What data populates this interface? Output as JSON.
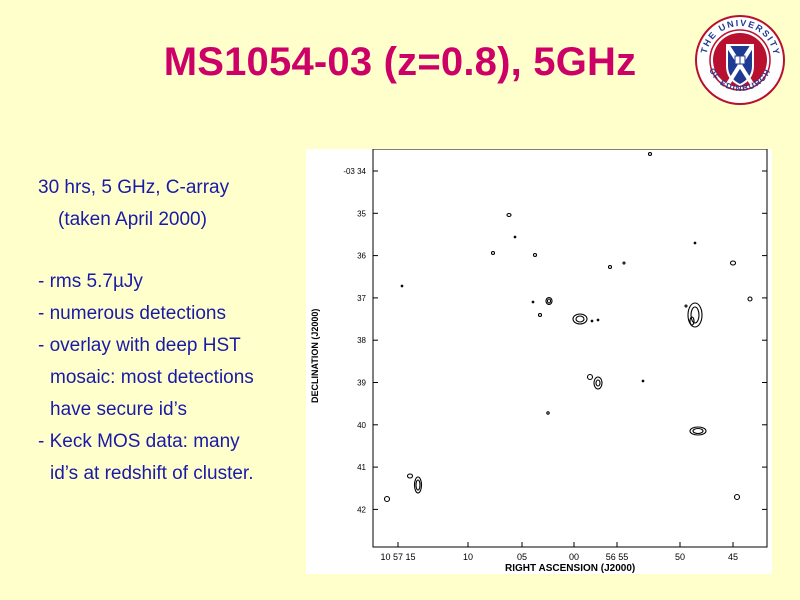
{
  "slide": {
    "title": "MS1054-03 (z=0.8), 5GHz"
  },
  "logo": {
    "icon": "university-of-edinburgh-seal-icon",
    "lettering": "THE UNIVERSITY OF EDINBURGH"
  },
  "bullets": {
    "line1": "30 hrs, 5 GHz, C-array",
    "line2": "(taken April 2000)",
    "line3": "- rms 5.7µJy",
    "line4": "- numerous detections",
    "line5": "- overlay with deep HST",
    "line6": "mosaic: most detections",
    "line7": "have secure id’s",
    "line8": "- Keck MOS data: many",
    "line9": "id’s at redshift of cluster."
  },
  "chart_data": {
    "type": "contour",
    "xlabel": "RIGHT ASCENSION (J2000)",
    "ylabel": "DECLINATION (J2000)",
    "y_ticks": [
      "-03 34",
      "35",
      "36",
      "37",
      "38",
      "39",
      "40",
      "41",
      "42"
    ],
    "x_ticks": [
      "10 57 15",
      "10",
      "05",
      "00",
      "56 55",
      "50",
      "45"
    ]
  }
}
